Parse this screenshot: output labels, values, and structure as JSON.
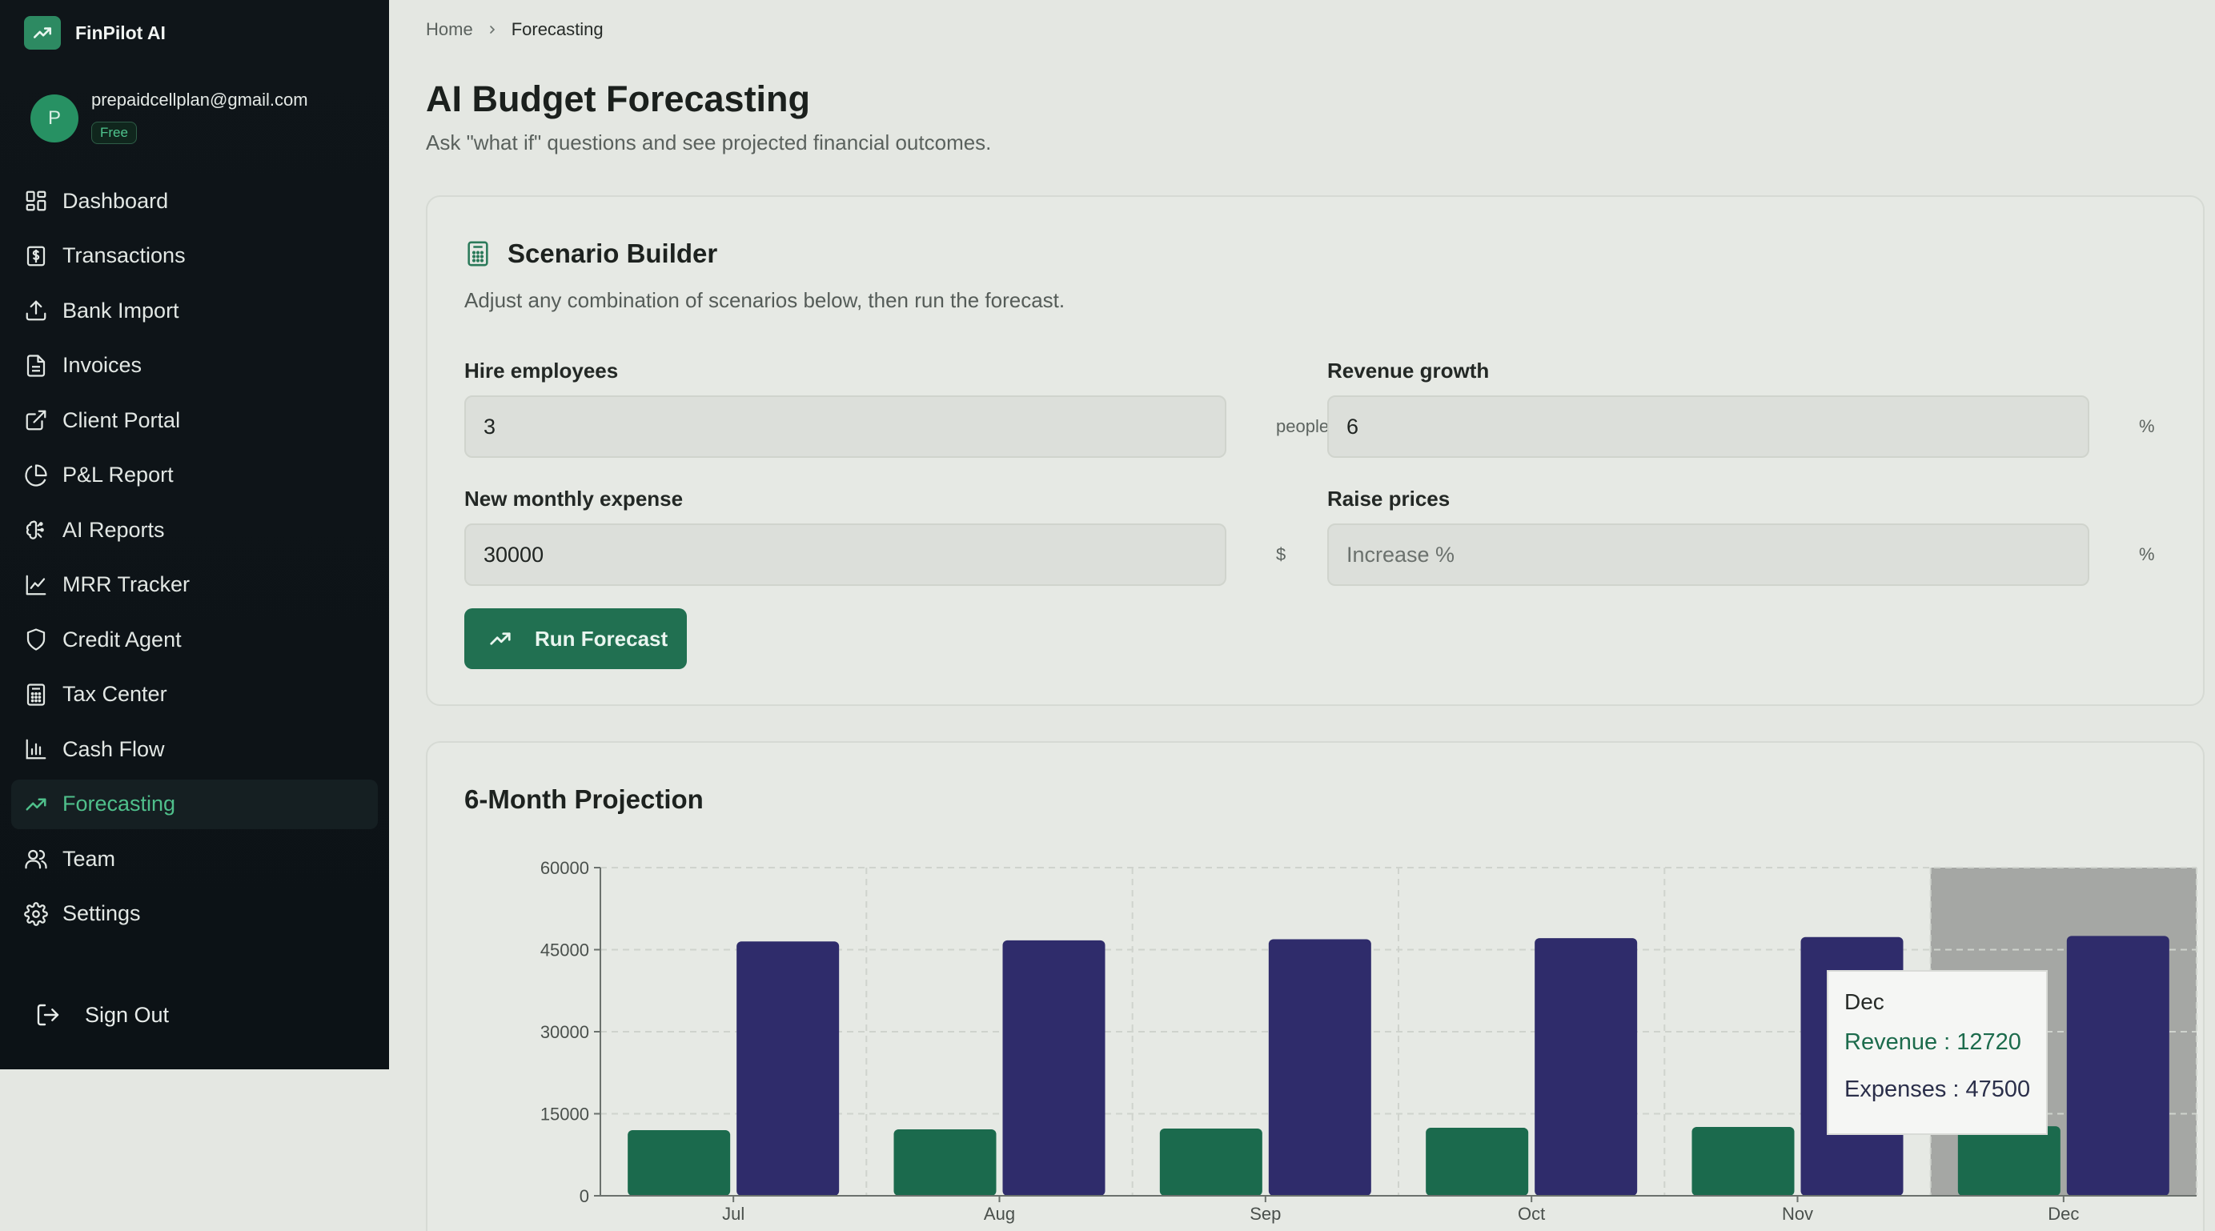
{
  "app": {
    "name": "FinPilot AI",
    "logo_icon": "trending-up-icon"
  },
  "user": {
    "avatar_initial": "P",
    "email": "prepaidcellplan@gmail.com",
    "plan": "Free"
  },
  "sidebar": {
    "items": [
      {
        "label": "Dashboard",
        "icon": "dashboard-icon"
      },
      {
        "label": "Transactions",
        "icon": "dollar-receipt-icon"
      },
      {
        "label": "Bank Import",
        "icon": "upload-icon"
      },
      {
        "label": "Invoices",
        "icon": "document-icon"
      },
      {
        "label": "Client Portal",
        "icon": "external-link-icon"
      },
      {
        "label": "P&L Report",
        "icon": "pie-chart-icon"
      },
      {
        "label": "AI Reports",
        "icon": "brain-icon"
      },
      {
        "label": "MRR Tracker",
        "icon": "line-chart-icon"
      },
      {
        "label": "Credit Agent",
        "icon": "shield-icon"
      },
      {
        "label": "Tax Center",
        "icon": "calculator-icon"
      },
      {
        "label": "Cash Flow",
        "icon": "bar-chart-icon"
      },
      {
        "label": "Forecasting",
        "icon": "trending-up-icon",
        "active": true
      },
      {
        "label": "Team",
        "icon": "users-icon"
      },
      {
        "label": "Settings",
        "icon": "gear-icon"
      }
    ],
    "sign_out": "Sign Out"
  },
  "breadcrumb": {
    "home": "Home",
    "current": "Forecasting"
  },
  "page": {
    "title": "AI Budget Forecasting",
    "subtitle": "Ask \"what if\" questions and see projected financial outcomes."
  },
  "scenario": {
    "title": "Scenario Builder",
    "description": "Adjust any combination of scenarios below, then run the forecast.",
    "fields": {
      "hire": {
        "label": "Hire employees",
        "value": "3",
        "unit": "people"
      },
      "revenue_growth": {
        "label": "Revenue growth",
        "value": "6",
        "unit": "%"
      },
      "monthly_expense": {
        "label": "New monthly expense",
        "value": "30000",
        "unit": "$"
      },
      "raise_prices": {
        "label": "Raise prices",
        "value": "",
        "placeholder": "Increase %",
        "unit": "%"
      }
    },
    "run_button": "Run Forecast"
  },
  "projection": {
    "title": "6-Month Projection"
  },
  "colors": {
    "revenue": "#1b6a4d",
    "expenses": "#2f2c6b",
    "accent": "#4fbf8b"
  },
  "chart_data": {
    "type": "bar",
    "categories": [
      "Jul",
      "Aug",
      "Sep",
      "Oct",
      "Nov",
      "Dec"
    ],
    "series": [
      {
        "name": "Revenue",
        "values": [
          12000,
          12140,
          12290,
          12430,
          12580,
          12720
        ]
      },
      {
        "name": "Expenses",
        "values": [
          46500,
          46700,
          46900,
          47100,
          47300,
          47500
        ]
      }
    ],
    "y_ticks": [
      0,
      15000,
      30000,
      45000,
      60000
    ],
    "ylim": [
      0,
      60000
    ],
    "grid": true,
    "highlighted_category": "Dec",
    "tooltip": {
      "label": "Dec",
      "revenue": "Revenue : 12720",
      "expenses": "Expenses : 47500"
    }
  }
}
